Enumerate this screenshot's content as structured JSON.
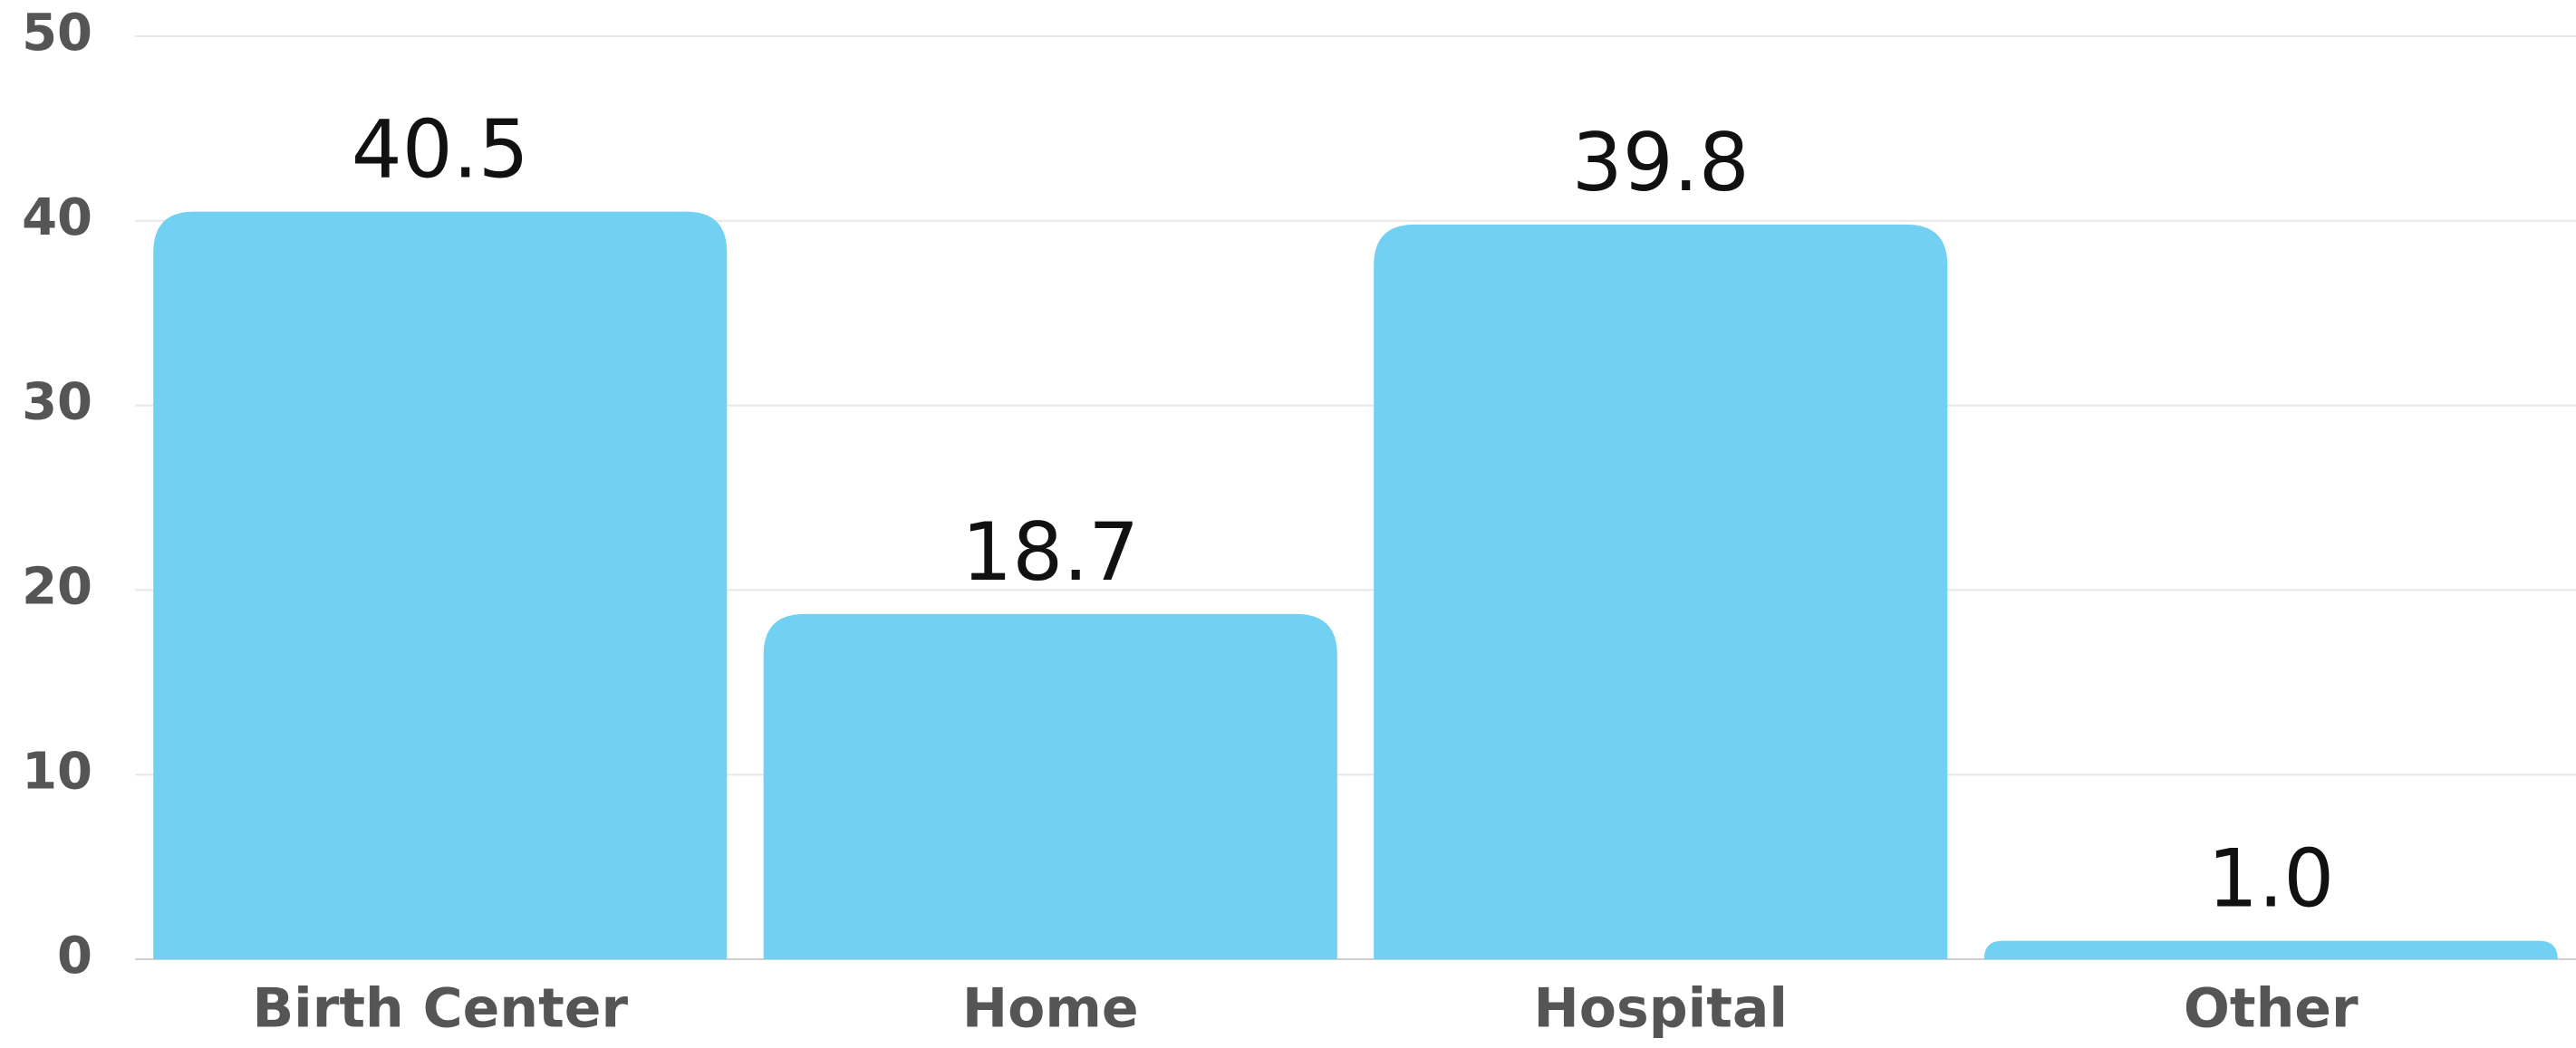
{
  "chart_data": {
    "type": "bar",
    "categories": [
      "Birth Center",
      "Home",
      "Hospital",
      "Other"
    ],
    "values": [
      40.5,
      18.7,
      39.8,
      1.0
    ],
    "value_labels": [
      "40.5",
      "18.7",
      "39.8",
      "1.0"
    ],
    "color": "#72d0f2",
    "ylim": [
      0,
      50
    ],
    "yticks": [
      0,
      10,
      20,
      30,
      40,
      50
    ],
    "grid": true
  }
}
